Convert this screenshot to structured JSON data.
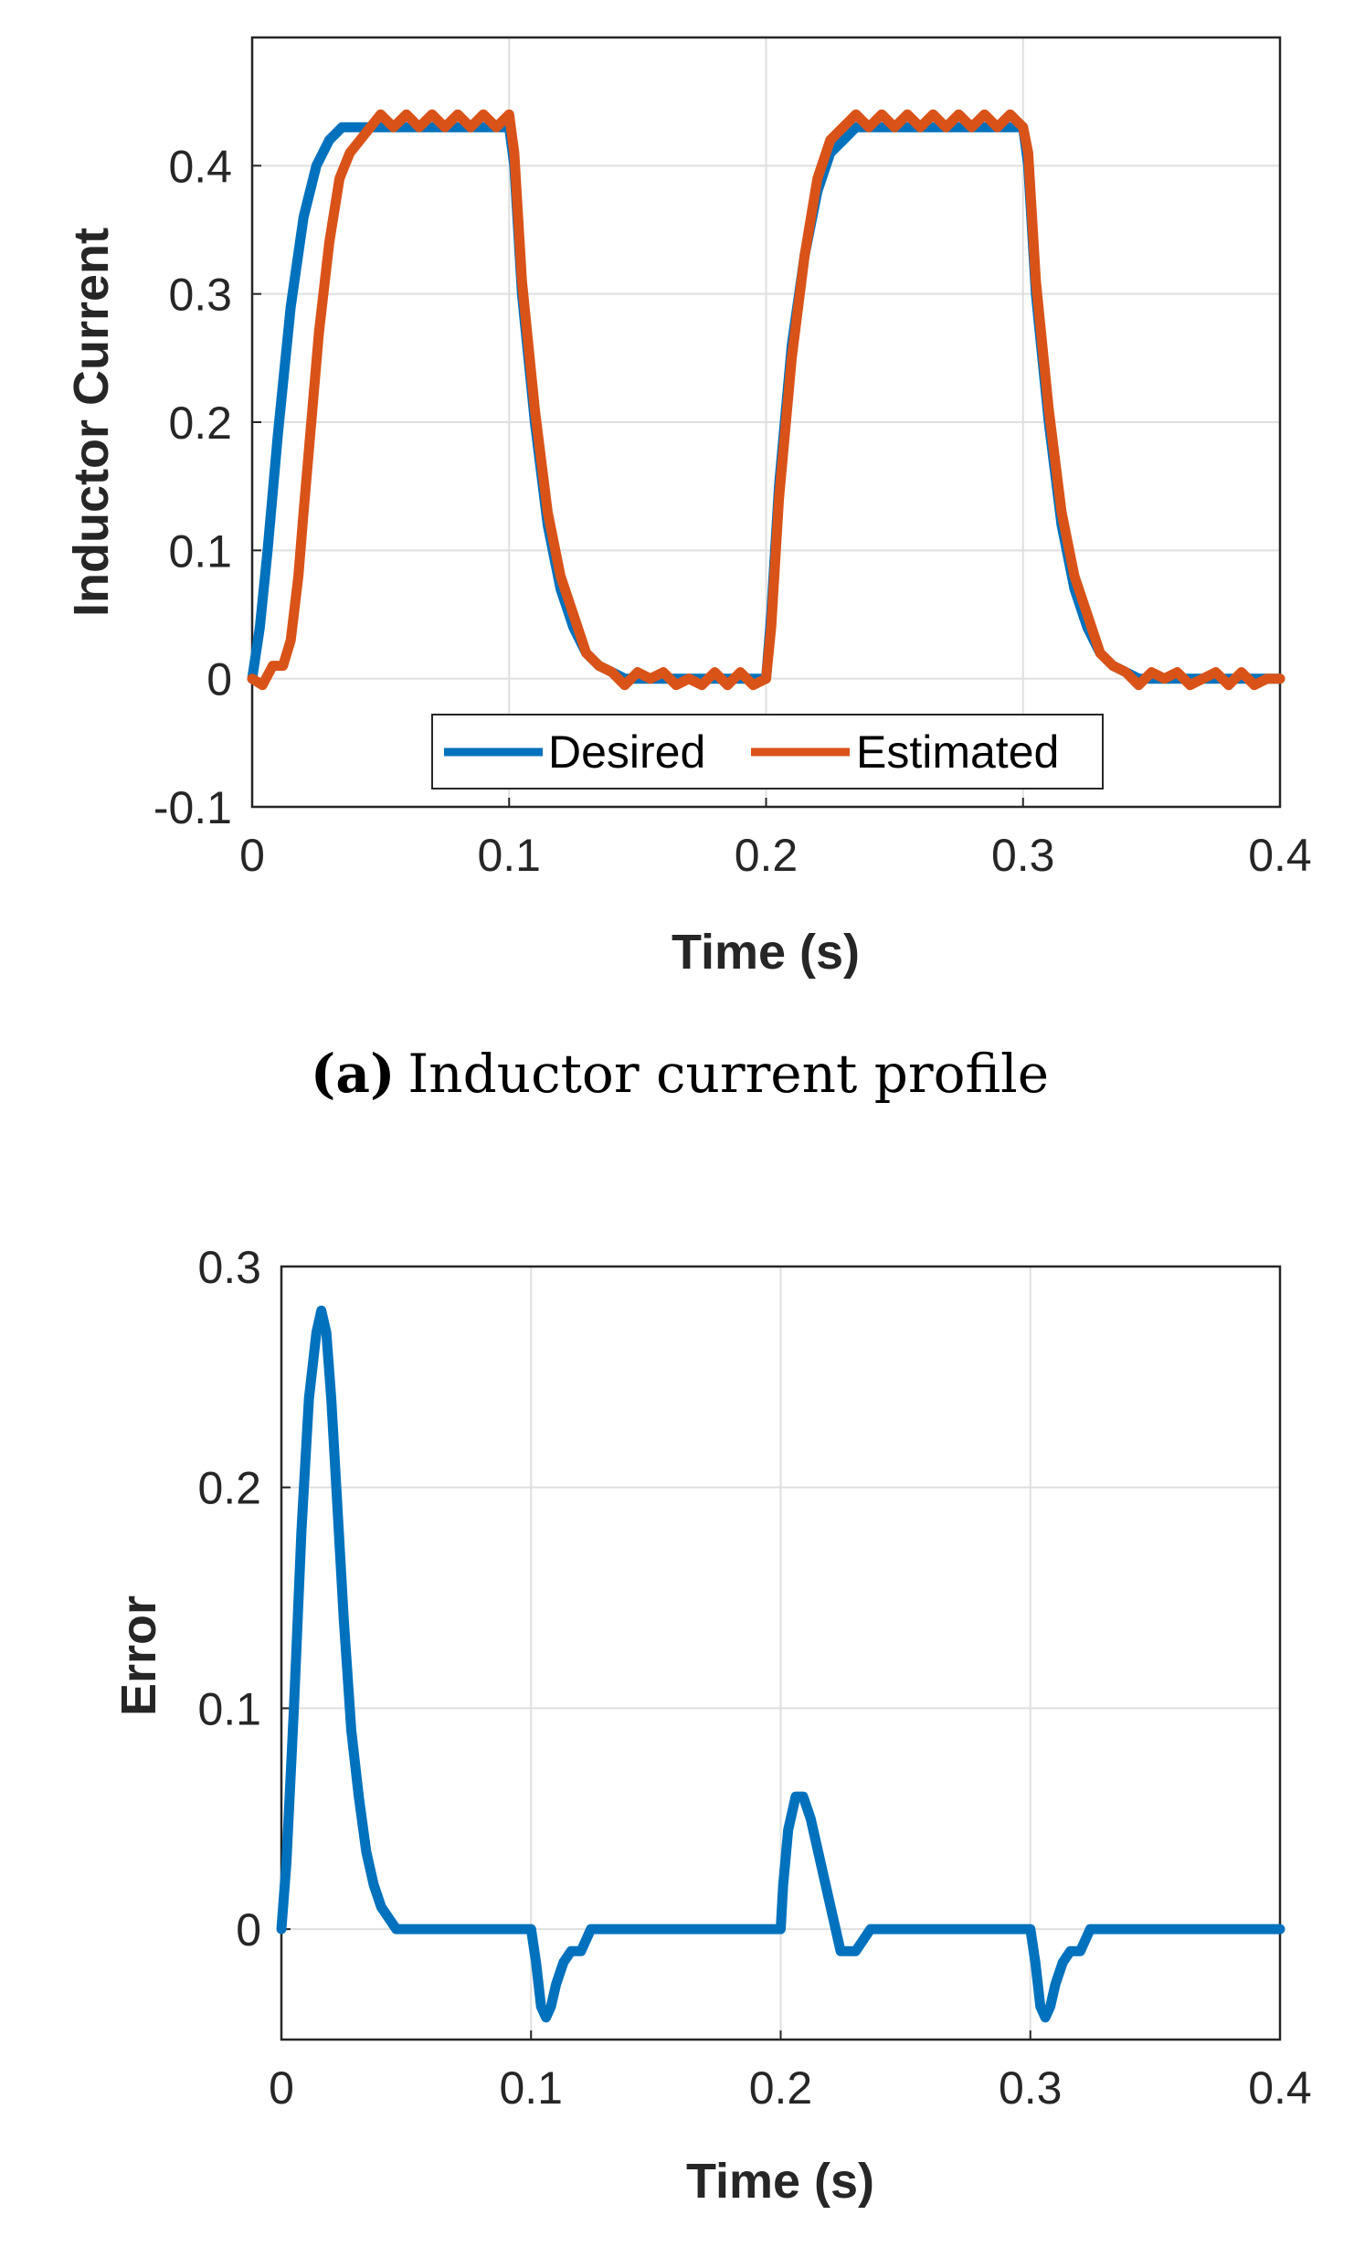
{
  "chart_data": [
    {
      "type": "line",
      "id": "a",
      "title": "",
      "caption": {
        "label": "(a)",
        "text": "Inductor current profile"
      },
      "xlabel": "Time (s)",
      "ylabel": "Inductor Current",
      "xlim": [
        0,
        0.4
      ],
      "ylim": [
        -0.1,
        0.5
      ],
      "xticks": [
        0,
        0.1,
        0.2,
        0.3,
        0.4
      ],
      "xtick_labels": [
        "0",
        "0.1",
        "0.2",
        "0.3",
        "0.4"
      ],
      "yticks": [
        -0.1,
        0,
        0.1,
        0.2,
        0.3,
        0.4
      ],
      "ytick_labels": [
        "-0.1",
        "0",
        "0.1",
        "0.2",
        "0.3",
        "0.4"
      ],
      "grid": true,
      "legend": {
        "position": "bottom-center",
        "entries": [
          "Desired",
          "Estimated"
        ]
      },
      "series": [
        {
          "name": "Desired",
          "color": "#0072BD",
          "x": [
            0,
            0.003,
            0.006,
            0.01,
            0.015,
            0.02,
            0.025,
            0.03,
            0.035,
            0.04,
            0.045,
            0.05,
            0.06,
            0.07,
            0.08,
            0.09,
            0.1,
            0.102,
            0.105,
            0.11,
            0.115,
            0.12,
            0.125,
            0.13,
            0.135,
            0.14,
            0.145,
            0.15,
            0.16,
            0.17,
            0.18,
            0.19,
            0.2,
            0.202,
            0.205,
            0.21,
            0.215,
            0.22,
            0.225,
            0.23,
            0.235,
            0.24,
            0.25,
            0.26,
            0.27,
            0.28,
            0.29,
            0.3,
            0.302,
            0.305,
            0.31,
            0.315,
            0.32,
            0.325,
            0.33,
            0.335,
            0.34,
            0.345,
            0.35,
            0.36,
            0.37,
            0.38,
            0.39,
            0.4
          ],
          "y": [
            0,
            0.04,
            0.1,
            0.19,
            0.29,
            0.36,
            0.4,
            0.42,
            0.43,
            0.43,
            0.43,
            0.43,
            0.43,
            0.43,
            0.43,
            0.43,
            0.43,
            0.4,
            0.3,
            0.2,
            0.12,
            0.07,
            0.04,
            0.02,
            0.01,
            0.005,
            0,
            0,
            0,
            0,
            0,
            0,
            0,
            0.05,
            0.15,
            0.26,
            0.33,
            0.38,
            0.41,
            0.42,
            0.43,
            0.43,
            0.43,
            0.43,
            0.43,
            0.43,
            0.43,
            0.43,
            0.4,
            0.3,
            0.2,
            0.12,
            0.07,
            0.04,
            0.02,
            0.01,
            0.005,
            0,
            0,
            0,
            0,
            0,
            0,
            0
          ]
        },
        {
          "name": "Estimated",
          "color": "#D95319",
          "x": [
            0,
            0.004,
            0.008,
            0.012,
            0.015,
            0.018,
            0.02,
            0.023,
            0.026,
            0.03,
            0.034,
            0.038,
            0.042,
            0.046,
            0.05,
            0.055,
            0.06,
            0.065,
            0.07,
            0.075,
            0.08,
            0.085,
            0.09,
            0.095,
            0.1,
            0.102,
            0.105,
            0.11,
            0.115,
            0.12,
            0.125,
            0.13,
            0.135,
            0.14,
            0.145,
            0.15,
            0.155,
            0.16,
            0.165,
            0.17,
            0.175,
            0.18,
            0.185,
            0.19,
            0.195,
            0.2,
            0.202,
            0.205,
            0.21,
            0.215,
            0.22,
            0.225,
            0.23,
            0.235,
            0.24,
            0.245,
            0.25,
            0.255,
            0.26,
            0.265,
            0.27,
            0.275,
            0.28,
            0.285,
            0.29,
            0.295,
            0.3,
            0.302,
            0.305,
            0.31,
            0.315,
            0.32,
            0.325,
            0.33,
            0.335,
            0.34,
            0.345,
            0.35,
            0.355,
            0.36,
            0.365,
            0.37,
            0.375,
            0.38,
            0.385,
            0.39,
            0.395,
            0.4
          ],
          "y": [
            0,
            -0.005,
            0.01,
            0.01,
            0.03,
            0.08,
            0.13,
            0.2,
            0.27,
            0.34,
            0.39,
            0.41,
            0.42,
            0.43,
            0.44,
            0.43,
            0.44,
            0.43,
            0.44,
            0.43,
            0.44,
            0.43,
            0.44,
            0.43,
            0.44,
            0.41,
            0.31,
            0.21,
            0.13,
            0.08,
            0.05,
            0.02,
            0.01,
            0.005,
            -0.005,
            0.005,
            0,
            0.005,
            -0.005,
            0,
            -0.005,
            0.005,
            -0.005,
            0.005,
            -0.005,
            0,
            0.04,
            0.14,
            0.25,
            0.33,
            0.39,
            0.42,
            0.43,
            0.44,
            0.43,
            0.44,
            0.43,
            0.44,
            0.43,
            0.44,
            0.43,
            0.44,
            0.43,
            0.44,
            0.43,
            0.44,
            0.43,
            0.41,
            0.31,
            0.21,
            0.13,
            0.08,
            0.05,
            0.02,
            0.01,
            0.005,
            -0.005,
            0.005,
            0,
            0.005,
            -0.005,
            0,
            0.005,
            -0.005,
            0.005,
            -0.005,
            0,
            0
          ]
        }
      ]
    },
    {
      "type": "line",
      "id": "b",
      "title": "",
      "xlabel": "Time (s)",
      "ylabel": "Error",
      "xlim": [
        0,
        0.4
      ],
      "ylim": [
        -0.05,
        0.3
      ],
      "xticks": [
        0,
        0.1,
        0.2,
        0.3,
        0.4
      ],
      "xtick_labels": [
        "0",
        "0.1",
        "0.2",
        "0.3",
        "0.4"
      ],
      "yticks": [
        0,
        0.1,
        0.2,
        0.3
      ],
      "ytick_labels": [
        "0",
        "0.1",
        "0.2",
        "0.3"
      ],
      "grid": true,
      "series": [
        {
          "name": "Error",
          "color": "#0072BD",
          "x": [
            0,
            0.002,
            0.005,
            0.008,
            0.011,
            0.014,
            0.016,
            0.018,
            0.02,
            0.022,
            0.025,
            0.028,
            0.031,
            0.034,
            0.037,
            0.04,
            0.043,
            0.046,
            0.05,
            0.06,
            0.07,
            0.08,
            0.09,
            0.1,
            0.102,
            0.104,
            0.106,
            0.108,
            0.11,
            0.113,
            0.116,
            0.12,
            0.124,
            0.13,
            0.14,
            0.15,
            0.16,
            0.17,
            0.18,
            0.19,
            0.2,
            0.201,
            0.203,
            0.206,
            0.209,
            0.212,
            0.215,
            0.218,
            0.221,
            0.224,
            0.23,
            0.236,
            0.24,
            0.25,
            0.26,
            0.27,
            0.28,
            0.29,
            0.3,
            0.302,
            0.304,
            0.306,
            0.308,
            0.31,
            0.313,
            0.316,
            0.32,
            0.324,
            0.33,
            0.34,
            0.35,
            0.36,
            0.37,
            0.38,
            0.39,
            0.4
          ],
          "y": [
            0,
            0.03,
            0.1,
            0.18,
            0.24,
            0.27,
            0.28,
            0.27,
            0.24,
            0.2,
            0.14,
            0.09,
            0.06,
            0.035,
            0.02,
            0.01,
            0.005,
            0,
            0,
            0,
            0,
            0,
            0,
            0,
            -0.015,
            -0.035,
            -0.04,
            -0.035,
            -0.025,
            -0.015,
            -0.01,
            -0.01,
            0,
            0,
            0,
            0,
            0,
            0,
            0,
            0,
            0,
            0.02,
            0.045,
            0.06,
            0.06,
            0.05,
            0.035,
            0.02,
            0.005,
            -0.01,
            -0.01,
            0,
            0,
            0,
            0,
            0,
            0,
            0,
            0,
            -0.015,
            -0.035,
            -0.04,
            -0.035,
            -0.025,
            -0.015,
            -0.01,
            -0.01,
            0,
            0,
            0,
            0,
            0,
            0,
            0,
            0,
            0
          ]
        }
      ]
    }
  ]
}
